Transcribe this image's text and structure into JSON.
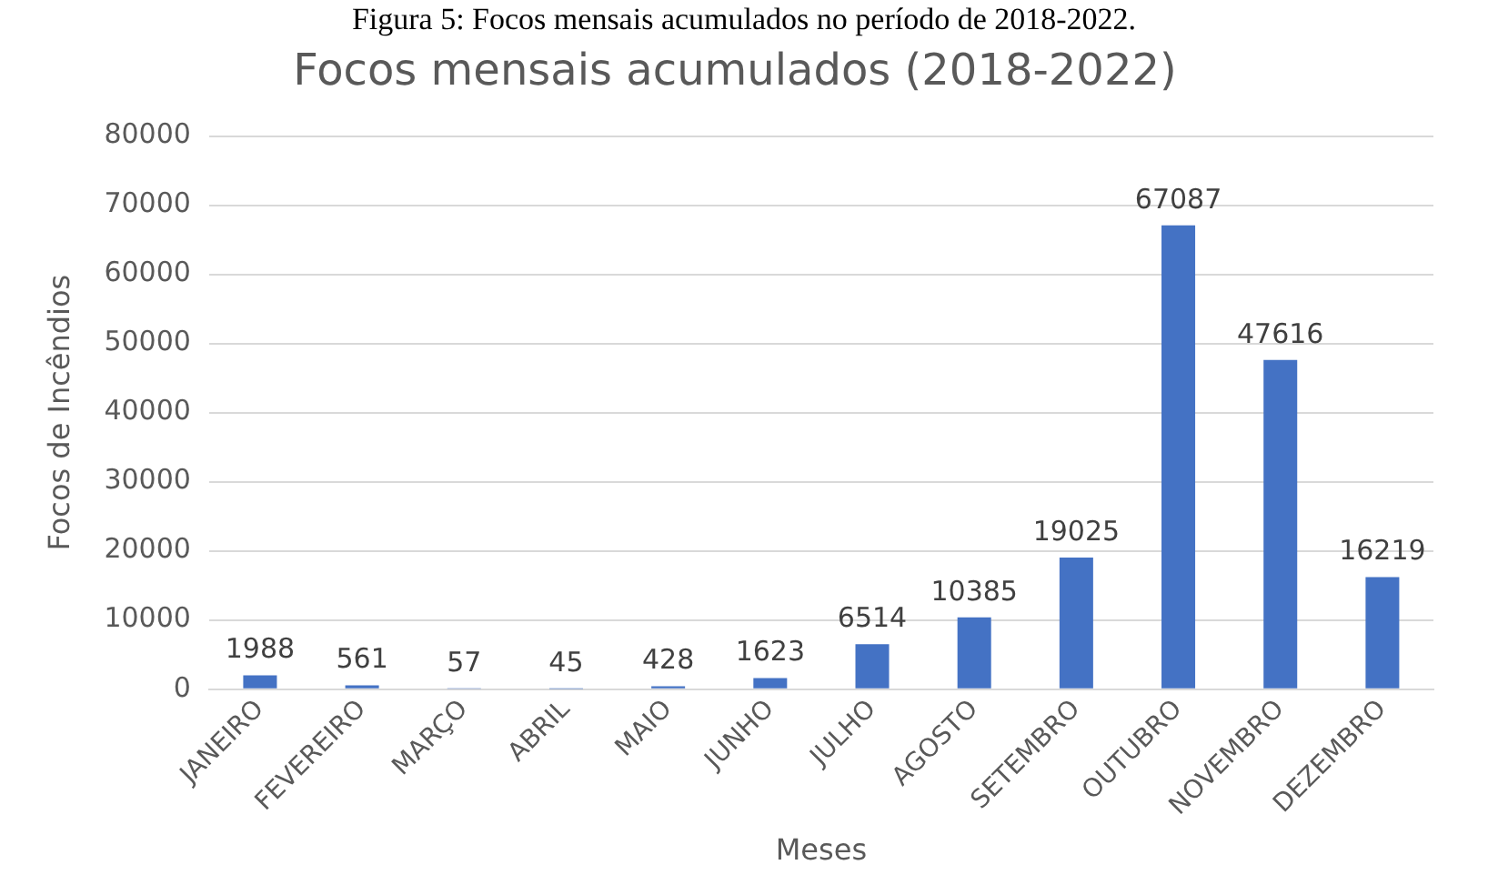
{
  "chart_data": {
    "type": "bar",
    "title": "Focos mensais acumulados (2018-2022)",
    "xlabel": "Meses",
    "ylabel": "Focos de Incêndios",
    "annotations": [
      "Figura 5: Focos mensais acumulados no período de 2018-2022."
    ],
    "categories": [
      "JANEIRO",
      "FEVEREIRO",
      "MARÇO",
      "ABRIL",
      "MAIO",
      "JUNHO",
      "JULHO",
      "AGOSTO",
      "SETEMBRO",
      "OUTUBRO",
      "NOVEMBRO",
      "DEZEMBRO"
    ],
    "values": [
      1988,
      561,
      57,
      45,
      428,
      1623,
      6514,
      10385,
      19025,
      67087,
      47616,
      16219
    ],
    "color": "#4472c4",
    "ylim": [
      0,
      80000
    ],
    "yticks": [
      0,
      10000,
      20000,
      30000,
      40000,
      50000,
      60000,
      70000,
      80000
    ],
    "grid": "y",
    "legend": false,
    "data_labels": true
  }
}
